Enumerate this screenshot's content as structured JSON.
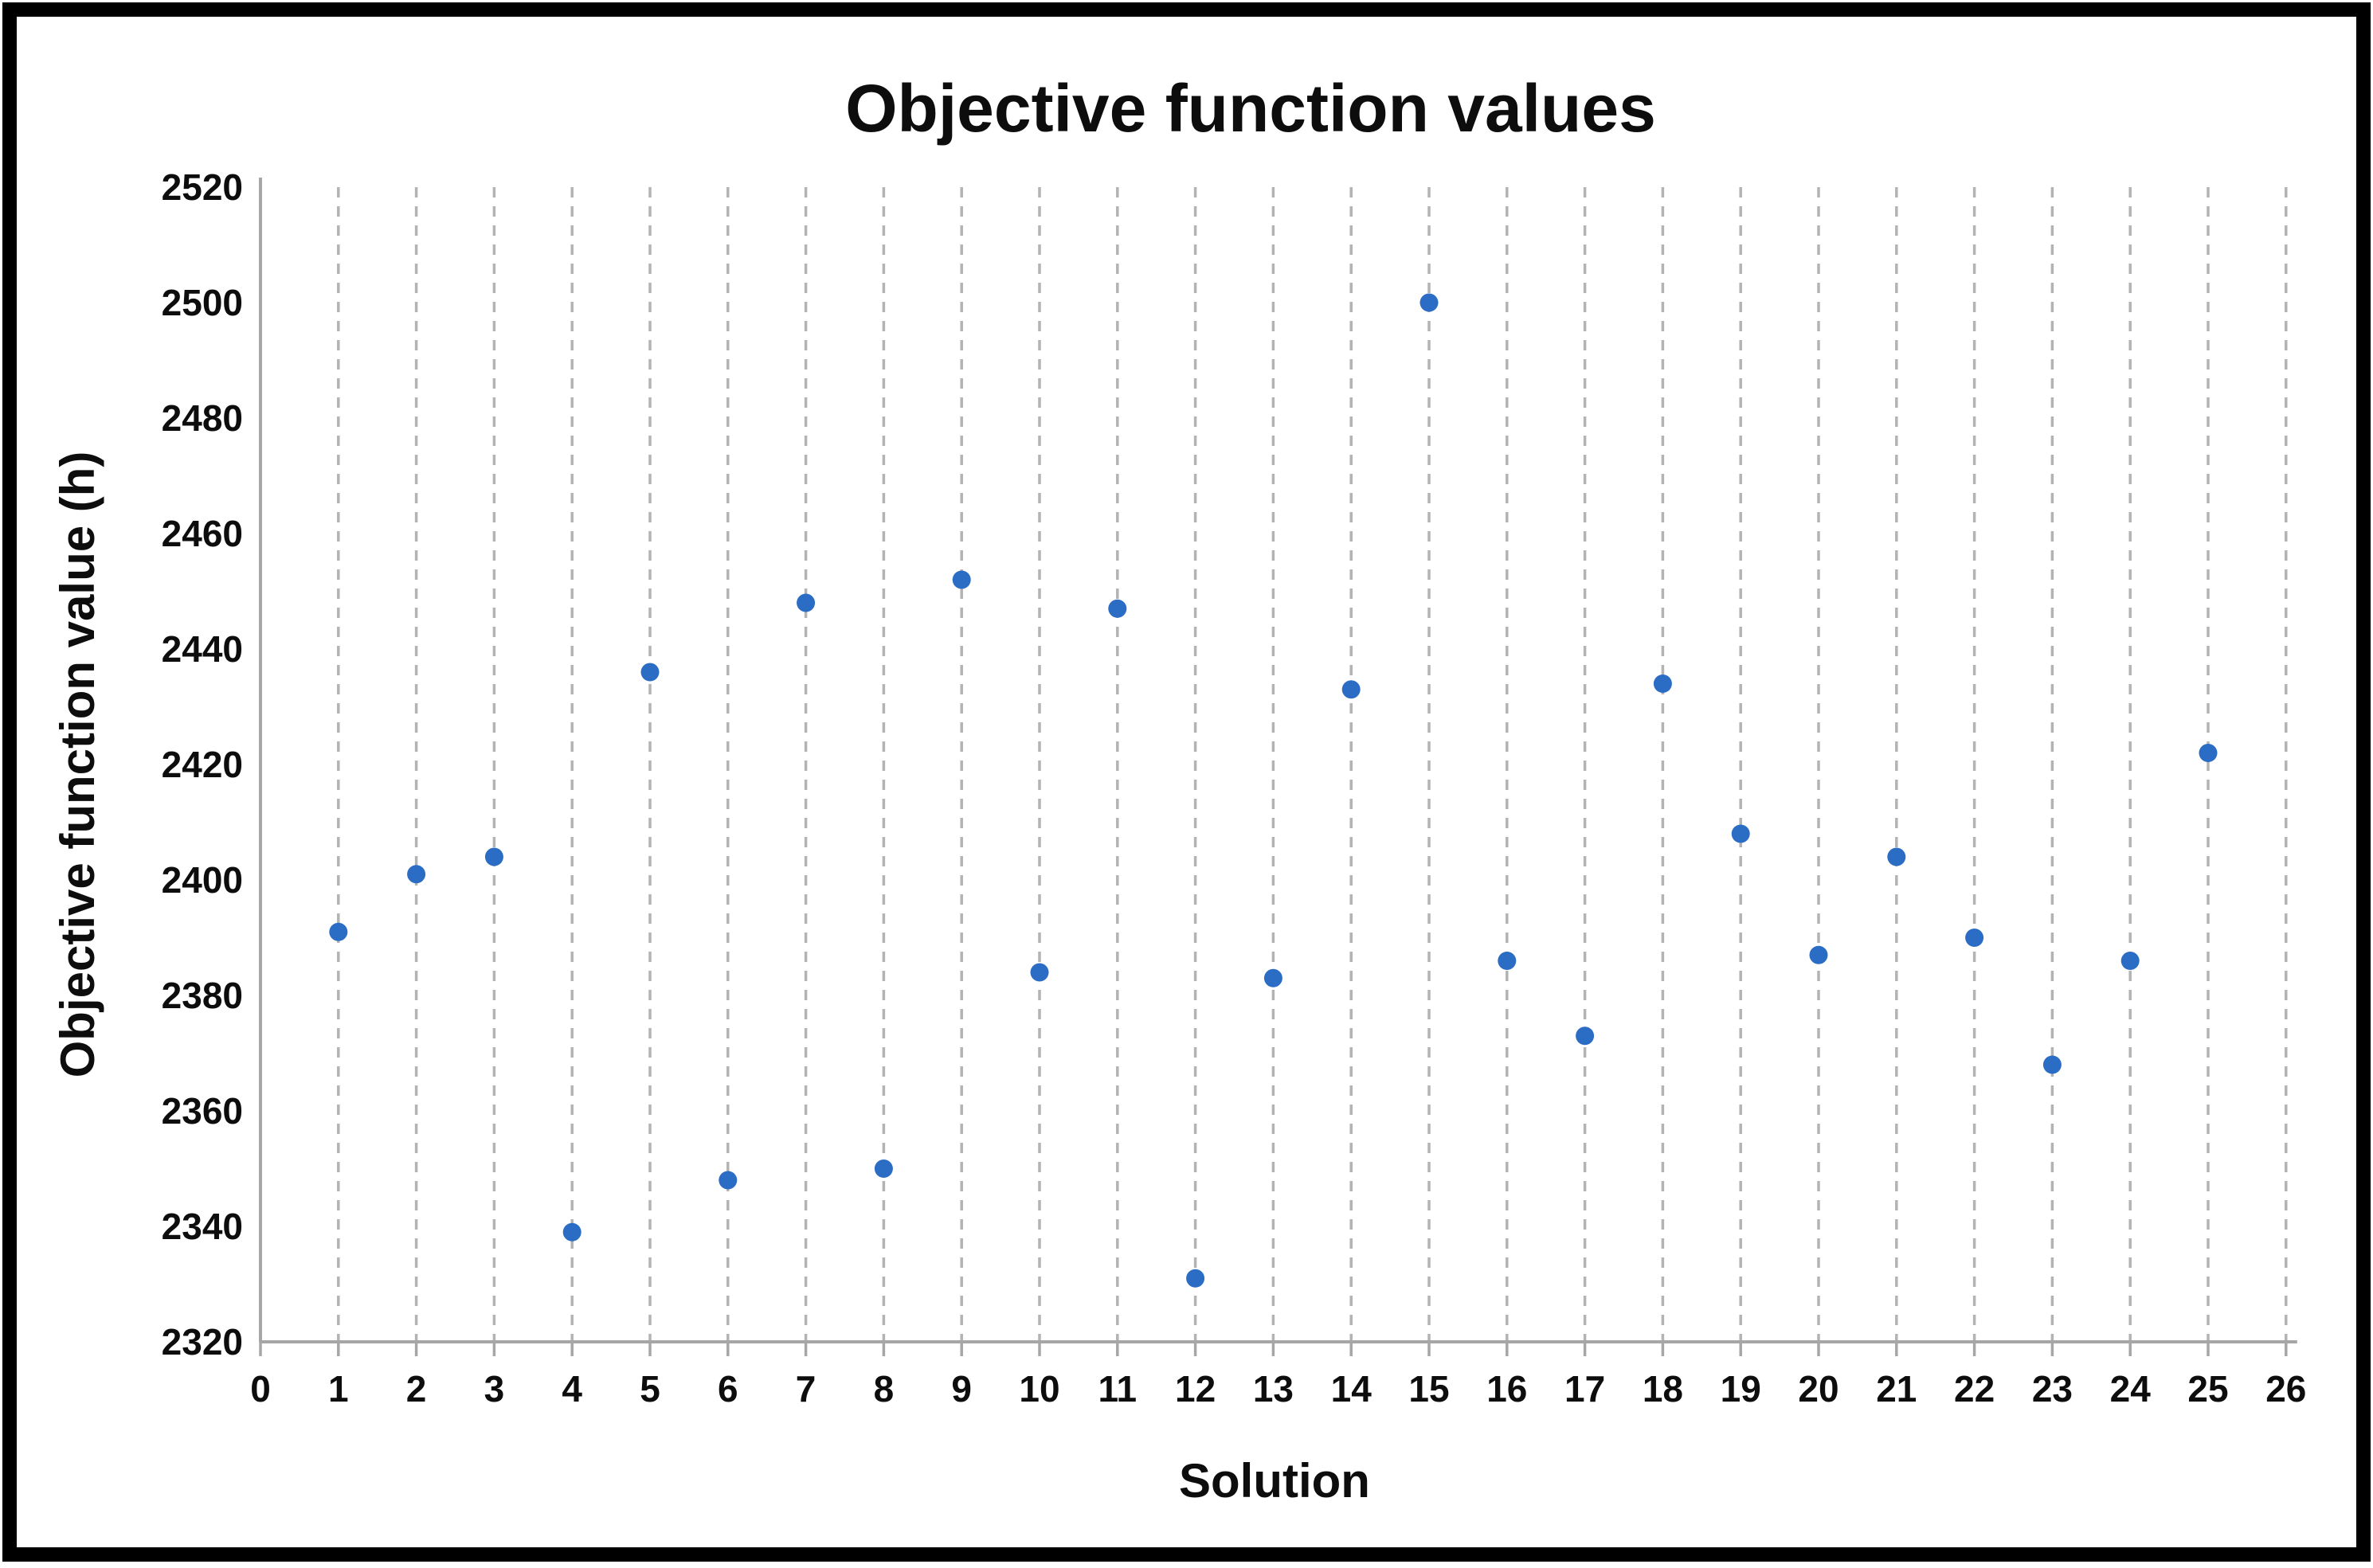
{
  "chart_data": {
    "type": "scatter",
    "title": "Objective function values",
    "xlabel": "Solution",
    "ylabel": "Objective function value (h)",
    "xlim": [
      0,
      26
    ],
    "ylim": [
      2320,
      2520
    ],
    "x_tick_step": 1,
    "y_tick_step": 20,
    "x_ticks": [
      0,
      1,
      2,
      3,
      4,
      5,
      6,
      7,
      8,
      9,
      10,
      11,
      12,
      13,
      14,
      15,
      16,
      17,
      18,
      19,
      20,
      21,
      22,
      23,
      24,
      25,
      26
    ],
    "y_ticks": [
      2320,
      2340,
      2360,
      2380,
      2400,
      2420,
      2440,
      2460,
      2480,
      2500,
      2520
    ],
    "grid": "vertical-dashed-major-x",
    "legend": "none",
    "colors": {
      "marker": "#2b6cc4",
      "gridline": "#b3b3b3",
      "axis_line": "#a6a6a6",
      "text": "#0d0d0d",
      "figure_border": "#000000",
      "background": "#ffffff"
    },
    "series": [
      {
        "name": "Objective function value",
        "x": [
          1,
          2,
          3,
          4,
          5,
          6,
          7,
          8,
          9,
          10,
          11,
          12,
          13,
          14,
          15,
          16,
          17,
          18,
          19,
          20,
          21,
          22,
          23,
          24,
          25
        ],
        "y": [
          2391,
          2401,
          2404,
          2339,
          2436,
          2348,
          2448,
          2350,
          2452,
          2384,
          2447,
          2331,
          2383,
          2433,
          2500,
          2386,
          2373,
          2434,
          2408,
          2387,
          2404,
          2390,
          2368,
          2386,
          2422
        ]
      }
    ]
  }
}
